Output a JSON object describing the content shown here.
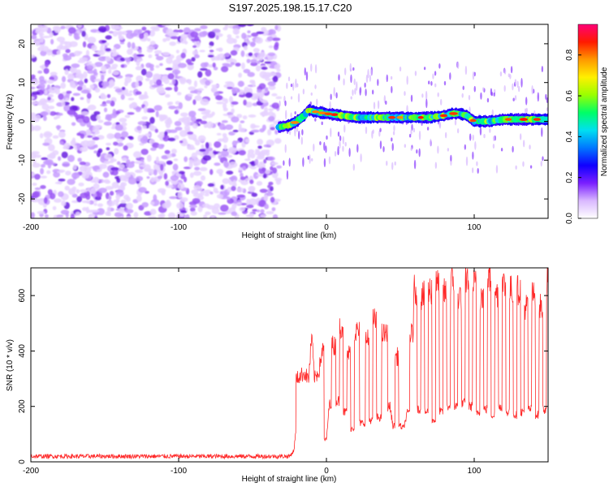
{
  "title": "S197.2025.198.15.17.C20",
  "chart_data": [
    {
      "type": "heatmap",
      "xlabel": "Height of straight line (km)",
      "ylabel": "Frequency (Hz)",
      "xlim": [
        -200,
        150
      ],
      "ylim": [
        -25,
        25
      ],
      "xticks": [
        "-200",
        "-100",
        "0",
        "100"
      ],
      "yticks": [
        "-20",
        "-10",
        "0",
        "10",
        "20"
      ],
      "noise_region_x": [
        -200,
        -32
      ],
      "signal_x_start": -32,
      "signal_track": {
        "x": [
          -32,
          -25,
          -20,
          -15,
          -12,
          -8,
          0,
          10,
          20,
          30,
          40,
          50,
          60,
          70,
          80,
          85,
          90,
          95,
          100,
          110,
          120,
          130,
          140,
          150
        ],
        "freq": [
          -1.5,
          -1,
          0,
          1.5,
          3,
          2.5,
          2,
          1.5,
          1,
          1,
          1,
          1,
          1,
          1,
          1.5,
          2,
          2,
          1.5,
          0,
          0,
          0.5,
          0.5,
          0.5,
          0.5
        ]
      },
      "colorbar": {
        "label": "Normalized spectral amplitude",
        "ticks": [
          "0.0",
          "0.2",
          "0.4",
          "0.6",
          "0.8"
        ],
        "range": [
          0,
          0.95
        ],
        "colors": [
          "#ffffff",
          "#d9b8ff",
          "#7a1fff",
          "#1000ff",
          "#0077ff",
          "#00e0f0",
          "#00ff66",
          "#9aff00",
          "#fff000",
          "#ff9900",
          "#ff1a00",
          "#ff0077"
        ]
      }
    },
    {
      "type": "line",
      "xlabel": "Height of straight line (km)",
      "ylabel": "SNR (10 * v/v)",
      "xlim": [
        -200,
        150
      ],
      "ylim": [
        0,
        700
      ],
      "xticks": [
        "-200",
        "-100",
        "0",
        "100"
      ],
      "yticks": [
        "0",
        "200",
        "400",
        "600"
      ],
      "series": [
        {
          "color": "#ff2a2a",
          "x": [
            -200,
            -160,
            -120,
            -80,
            -40,
            -25,
            -22,
            -21,
            -20,
            -18,
            -15,
            -12,
            -10,
            -8,
            -5,
            -3,
            0,
            2,
            5,
            8,
            10,
            13,
            15,
            18,
            20,
            25,
            28,
            30,
            33,
            35,
            40,
            43,
            45,
            48,
            50,
            52,
            55,
            58,
            60,
            63,
            65,
            68,
            70,
            73,
            75,
            78,
            80,
            83,
            85,
            88,
            90,
            93,
            95,
            98,
            100,
            103,
            105,
            108,
            110,
            113,
            115,
            118,
            120,
            123,
            125,
            128,
            130,
            133,
            135,
            138,
            140,
            143,
            145,
            148,
            150
          ],
          "y": [
            20,
            20,
            20,
            20,
            20,
            20,
            40,
            100,
            300,
            310,
            320,
            300,
            450,
            300,
            330,
            400,
            80,
            210,
            420,
            220,
            490,
            180,
            390,
            120,
            470,
            140,
            440,
            150,
            510,
            160,
            460,
            200,
            130,
            380,
            130,
            120,
            180,
            460,
            620,
            190,
            600,
            180,
            620,
            150,
            640,
            180,
            610,
            200,
            650,
            200,
            600,
            210,
            660,
            200,
            640,
            180,
            600,
            190,
            660,
            170,
            610,
            200,
            640,
            180,
            620,
            170,
            620,
            180,
            560,
            190,
            600,
            170,
            560,
            190,
            660
          ]
        }
      ]
    }
  ]
}
